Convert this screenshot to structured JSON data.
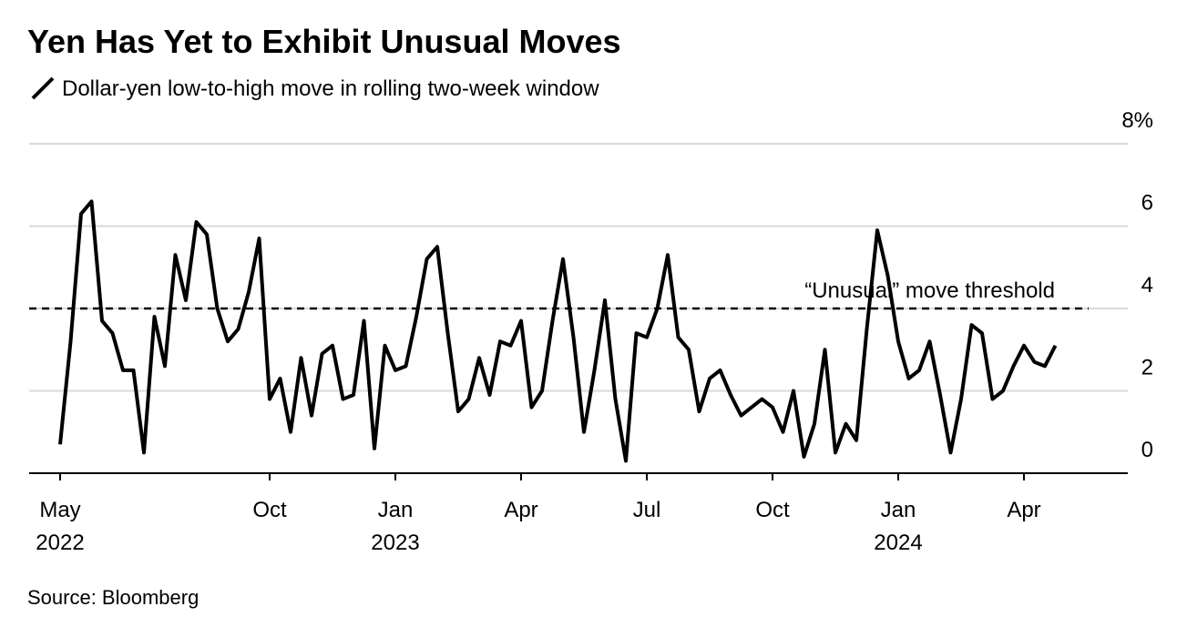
{
  "chart_data": {
    "type": "line",
    "title": "Yen Has Yet to Exhibit Unusual Moves",
    "source": "Source: Bloomberg",
    "categories": [
      "May 2022",
      null,
      null,
      null,
      null,
      null,
      null,
      null,
      null,
      null,
      null,
      null,
      null,
      null,
      null,
      null,
      null,
      null,
      null,
      null,
      "Oct",
      null,
      null,
      null,
      null,
      null,
      null,
      null,
      null,
      null,
      null,
      null,
      "Jan 2023",
      null,
      null,
      null,
      null,
      null,
      null,
      null,
      null,
      null,
      null,
      null,
      "Apr",
      null,
      null,
      null,
      null,
      null,
      null,
      null,
      null,
      null,
      null,
      null,
      "Jul",
      null,
      null,
      null,
      null,
      null,
      null,
      null,
      null,
      null,
      null,
      null,
      "Oct",
      null,
      null,
      null,
      null,
      null,
      null,
      null,
      null,
      null,
      null,
      null,
      "Jan 2024",
      null,
      null,
      null,
      null,
      null,
      null,
      null,
      null,
      null,
      null,
      null,
      "Apr",
      null,
      null,
      null
    ],
    "series": [
      {
        "name": "Dollar-yen low-to-high move in rolling two-week window",
        "color": "#000000",
        "values": [
          0.7,
          3.2,
          6.3,
          6.6,
          3.7,
          3.4,
          2.5,
          2.5,
          0.5,
          3.8,
          2.6,
          5.3,
          4.2,
          6.1,
          5.8,
          4.0,
          3.2,
          3.5,
          4.4,
          5.7,
          1.8,
          2.3,
          1.0,
          2.8,
          1.4,
          2.9,
          3.1,
          1.8,
          1.9,
          3.7,
          0.6,
          3.1,
          2.5,
          2.6,
          3.8,
          5.2,
          5.5,
          3.4,
          1.5,
          1.8,
          2.8,
          1.9,
          3.2,
          3.1,
          3.7,
          1.6,
          2.0,
          3.7,
          5.2,
          3.3,
          1.0,
          2.5,
          4.2,
          1.8,
          0.3,
          3.4,
          3.3,
          4.0,
          5.3,
          3.3,
          3.0,
          1.5,
          2.3,
          2.5,
          1.9,
          1.4,
          1.6,
          1.8,
          1.6,
          1.0,
          2.0,
          0.4,
          1.2,
          3.0,
          0.5,
          1.2,
          0.8,
          3.5,
          5.9,
          4.8,
          3.2,
          2.3,
          2.5,
          3.2,
          1.9,
          0.5,
          1.8,
          3.6,
          3.4,
          1.8,
          2.0,
          2.6,
          3.1,
          2.7,
          2.6,
          3.1
        ]
      }
    ],
    "threshold": {
      "value": 4,
      "label": "“Unusual” move threshold"
    },
    "ylim": [
      0,
      8
    ],
    "yticks": [
      0,
      2,
      4,
      6,
      {
        "value": 8,
        "label": "8%"
      }
    ],
    "grid": true
  }
}
